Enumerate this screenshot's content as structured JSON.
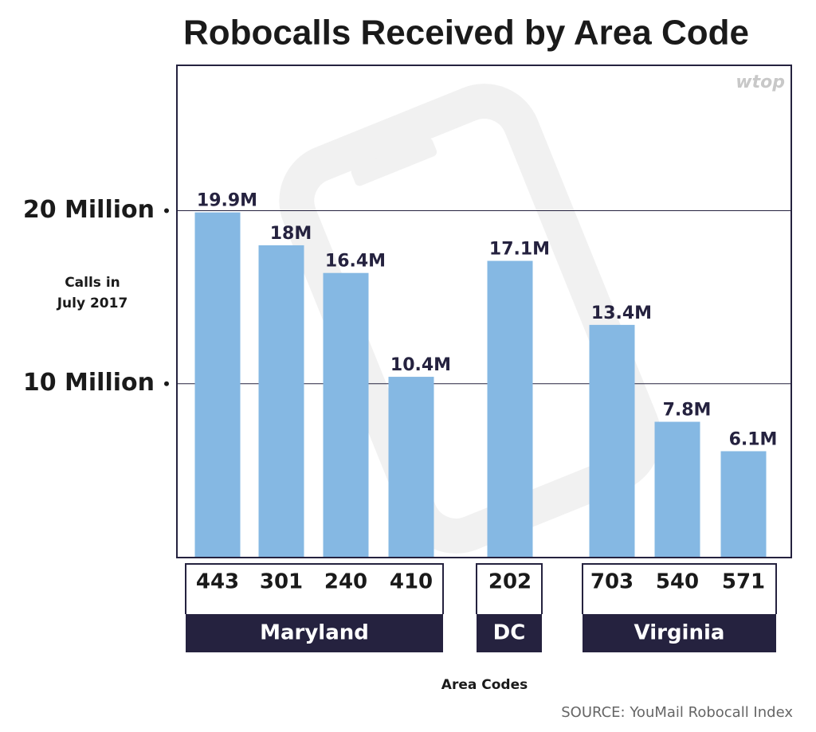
{
  "chart_data": {
    "type": "bar",
    "title": "Robocalls Received by Area Code",
    "logo": "wtop",
    "y_label": [
      "Calls in",
      "July 2017"
    ],
    "x_label": "Area Codes",
    "source": "SOURCE: YouMail Robocall Index",
    "color": "#85b8e3",
    "group_color": "#25223f",
    "ylim": [
      0,
      28.4
    ],
    "yticks": [
      {
        "value": 10,
        "label": "10 Million"
      },
      {
        "value": 20,
        "label": "20 Million"
      }
    ],
    "grid": true,
    "groups": [
      {
        "name": "Maryland",
        "categories": [
          "443",
          "301",
          "240",
          "410"
        ],
        "values": [
          19.9,
          18,
          16.4,
          10.4
        ],
        "value_labels": [
          "19.9M",
          "18M",
          "16.4M",
          "10.4M"
        ]
      },
      {
        "name": "DC",
        "categories": [
          "202"
        ],
        "values": [
          17.1
        ],
        "value_labels": [
          "17.1M"
        ]
      },
      {
        "name": "Virginia",
        "categories": [
          "703",
          "540",
          "571"
        ],
        "values": [
          13.4,
          7.8,
          6.1
        ],
        "value_labels": [
          "13.4M",
          "7.8M",
          "6.1M"
        ]
      }
    ]
  }
}
